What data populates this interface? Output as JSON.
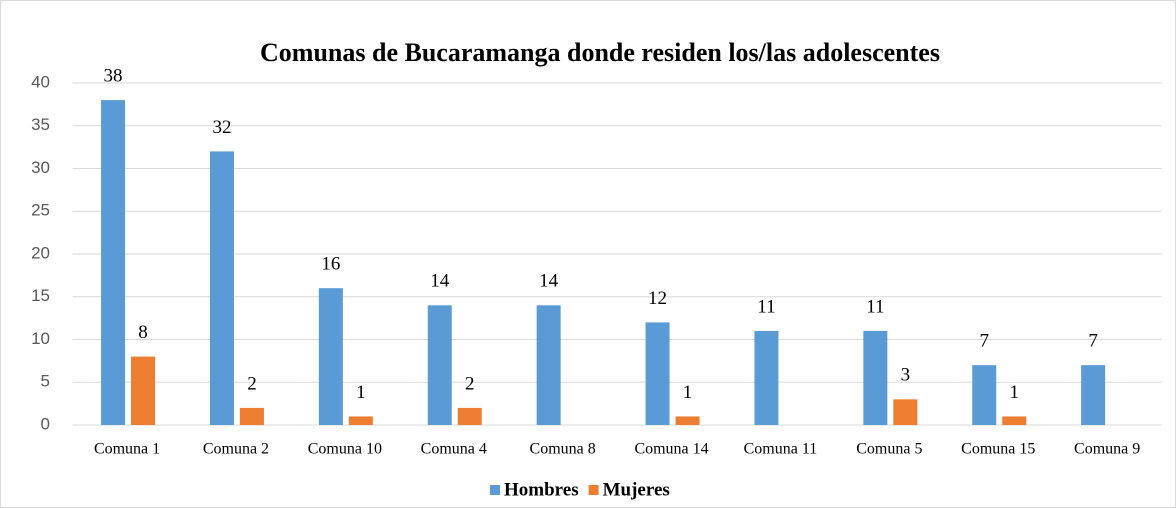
{
  "chart_data": {
    "type": "bar",
    "title": "Comunas de Bucaramanga  donde residen los/las adolescentes",
    "categories": [
      "Comuna 1",
      "Comuna 2",
      "Comuna 10",
      "Comuna 4",
      "Comuna 8",
      "Comuna 14",
      "Comuna 11",
      "Comuna 5",
      "Comuna 15",
      "Comuna 9"
    ],
    "series": [
      {
        "name": "Hombres",
        "color": "#5b9bd5",
        "values": [
          38,
          32,
          16,
          14,
          14,
          12,
          11,
          11,
          7,
          7
        ]
      },
      {
        "name": "Mujeres",
        "color": "#ed7d31",
        "values": [
          8,
          2,
          1,
          2,
          null,
          1,
          null,
          3,
          1,
          null
        ]
      }
    ],
    "ylim": [
      0,
      40
    ],
    "yticks": [
      0,
      5,
      10,
      15,
      20,
      25,
      30,
      35,
      40
    ],
    "grid": true,
    "legend": "bottom"
  }
}
